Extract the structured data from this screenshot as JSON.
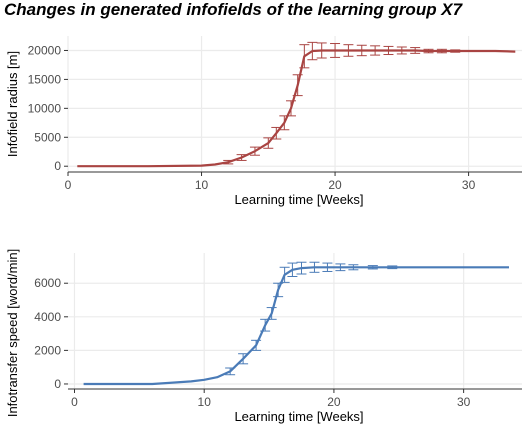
{
  "title": "Changes in generated infofields of the learning group X7",
  "chart_data": [
    {
      "type": "line",
      "xlabel": "Learning time [Weeks]",
      "ylabel": "Infofield radius [m]",
      "xlim": [
        0,
        34
      ],
      "ylim": [
        -1000,
        22500
      ],
      "xticks": [
        0,
        10,
        20,
        30
      ],
      "yticks": [
        0,
        5000,
        10000,
        15000,
        20000
      ],
      "grid": true,
      "color": "#a94442",
      "series": [
        {
          "x": [
            0.7,
            6,
            10,
            11,
            12,
            13,
            14,
            15,
            15.6,
            16.2,
            16.7,
            17.2,
            17.7,
            18.3,
            19,
            20,
            21,
            22,
            23,
            24,
            25,
            26,
            27,
            28,
            29,
            30,
            31,
            32,
            33.5
          ],
          "y": [
            0,
            0,
            100,
            300,
            700,
            1500,
            2600,
            4000,
            5700,
            7500,
            10000,
            14000,
            19000,
            19900,
            20000,
            20000,
            20000,
            20000,
            20000,
            20000,
            20000,
            20000,
            19900,
            19900,
            19900,
            19900,
            19900,
            19900,
            19800
          ],
          "err": [
            0,
            0,
            0,
            0,
            300,
            500,
            700,
            900,
            1000,
            1200,
            1300,
            1800,
            2000,
            1500,
            1300,
            1200,
            1000,
            900,
            800,
            700,
            600,
            500,
            300,
            300,
            200,
            0,
            0,
            0,
            0
          ]
        }
      ]
    },
    {
      "type": "line",
      "xlabel": "Learning time [Weeks]",
      "ylabel": "Infotransfer speed [word/min]",
      "xlim": [
        -0.5,
        34.5
      ],
      "ylim": [
        -300,
        7800
      ],
      "xticks": [
        0,
        10,
        20,
        30
      ],
      "yticks": [
        0,
        2000,
        4000,
        6000
      ],
      "grid": true,
      "color": "#4a7bb7",
      "series": [
        {
          "x": [
            0.7,
            6,
            9,
            10,
            11,
            12,
            13,
            14,
            14.7,
            15.2,
            15.7,
            16.2,
            16.8,
            17.5,
            18.5,
            19.5,
            20.5,
            21.5,
            23,
            24.5,
            26,
            27.5,
            29,
            30.5,
            32,
            33.5
          ],
          "y": [
            0,
            0,
            150,
            250,
            400,
            750,
            1500,
            2300,
            3500,
            4200,
            5600,
            6500,
            6800,
            6900,
            6950,
            6950,
            6950,
            6950,
            6950,
            6950,
            6950,
            6950,
            6950,
            6950,
            6950,
            6950
          ],
          "err": [
            0,
            0,
            0,
            0,
            0,
            200,
            300,
            300,
            350,
            350,
            400,
            450,
            400,
            350,
            300,
            250,
            200,
            150,
            100,
            80,
            0,
            0,
            0,
            0,
            0,
            0
          ]
        }
      ]
    }
  ]
}
